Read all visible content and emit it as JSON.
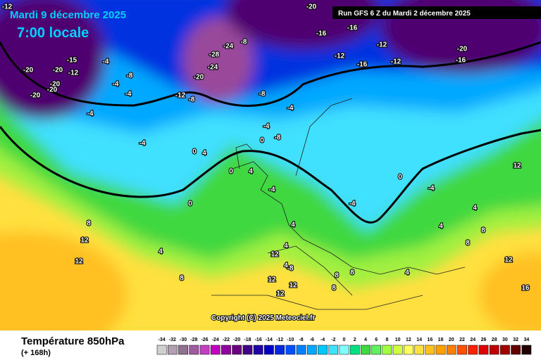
{
  "header": {
    "date": "Mardi 9 décembre 2025",
    "time": "7:00 locale",
    "run": "Run GFS 6 Z du Mardi 2 décembre 2025"
  },
  "copyright": "Copyright (C) 2025 Meteociel.fr",
  "legend": {
    "title": "Température 850hPa",
    "subtitle": "(+ 168h)",
    "scale": [
      {
        "value": -34,
        "color": "#d0d0d0"
      },
      {
        "value": -32,
        "color": "#b0a0b0"
      },
      {
        "value": -30,
        "color": "#907090"
      },
      {
        "value": -28,
        "color": "#a05aa0"
      },
      {
        "value": -26,
        "color": "#c040c0"
      },
      {
        "value": -24,
        "color": "#c000c0"
      },
      {
        "value": -22,
        "color": "#9000a0"
      },
      {
        "value": -20,
        "color": "#680080"
      },
      {
        "value": -18,
        "color": "#400088"
      },
      {
        "value": -16,
        "color": "#2000a8"
      },
      {
        "value": -14,
        "color": "#0000c8"
      },
      {
        "value": -12,
        "color": "#0028e0"
      },
      {
        "value": -10,
        "color": "#0050ff"
      },
      {
        "value": -8,
        "color": "#0080ff"
      },
      {
        "value": -6,
        "color": "#00a8ff"
      },
      {
        "value": -4,
        "color": "#00c8ff"
      },
      {
        "value": -2,
        "color": "#40e0ff"
      },
      {
        "value": 0,
        "color": "#80ffff"
      },
      {
        "value": 2,
        "color": "#00e080"
      },
      {
        "value": 4,
        "color": "#40d840"
      },
      {
        "value": 6,
        "color": "#60f060"
      },
      {
        "value": 8,
        "color": "#a0ff40"
      },
      {
        "value": 10,
        "color": "#d0ff40"
      },
      {
        "value": 12,
        "color": "#ffff60"
      },
      {
        "value": 14,
        "color": "#ffe040"
      },
      {
        "value": 16,
        "color": "#ffc020"
      },
      {
        "value": 18,
        "color": "#ffa000"
      },
      {
        "value": 20,
        "color": "#ff8000"
      },
      {
        "value": 22,
        "color": "#ff5000"
      },
      {
        "value": 24,
        "color": "#ff2000"
      },
      {
        "value": 26,
        "color": "#e00000"
      },
      {
        "value": 28,
        "color": "#c00000"
      },
      {
        "value": 30,
        "color": "#a00000"
      },
      {
        "value": 32,
        "color": "#600000"
      },
      {
        "value": 34,
        "color": "#200000"
      }
    ]
  },
  "contour_labels": [
    "-12",
    "-20",
    "-20",
    "-20",
    "-15",
    "-12",
    "-20",
    "-20",
    "-4",
    "-8",
    "-4",
    "-4",
    "-4",
    "-28",
    "-24",
    "-24",
    "-20",
    "-12",
    "-8",
    "-8",
    "-8",
    "-20",
    "-16",
    "-16",
    "-12",
    "-12",
    "-16",
    "-12",
    "-20",
    "-16",
    "-8",
    "-4",
    "-4",
    "-4",
    "-4",
    "0",
    "4",
    "0",
    "0",
    "4",
    "0",
    "-4",
    "4",
    "4",
    "0",
    "12",
    "12",
    "8",
    "12",
    "4",
    "8",
    "12",
    "12",
    "12",
    "8",
    "8",
    "8",
    "4",
    "4",
    "4",
    "8",
    "8",
    "12",
    "16",
    "12",
    "4",
    "-4",
    "-8"
  ]
}
